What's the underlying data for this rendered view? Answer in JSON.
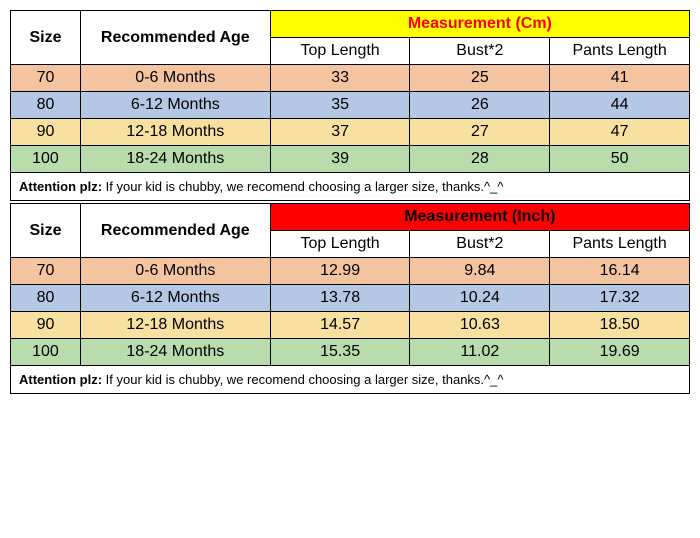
{
  "tables": [
    {
      "measurement_header": "Measurement (Cm)",
      "measurement_bg": "#ffff00",
      "measurement_color": "#ff0000",
      "columns": {
        "size": "Size",
        "age": "Recommended Age",
        "m1": "Top Length",
        "m2": "Bust*2",
        "m3": "Pants Length"
      },
      "rows": [
        {
          "size": "70",
          "age": "0-6 Months",
          "m1": "33",
          "m2": "25",
          "m3": "41",
          "bg": "#f4c4a0"
        },
        {
          "size": "80",
          "age": "6-12 Months",
          "m1": "35",
          "m2": "26",
          "m3": "44",
          "bg": "#b4c8e4"
        },
        {
          "size": "90",
          "age": "12-18 Months",
          "m1": "37",
          "m2": "27",
          "m3": "47",
          "bg": "#f8e0a0"
        },
        {
          "size": "100",
          "age": "18-24 Months",
          "m1": "39",
          "m2": "28",
          "m3": "50",
          "bg": "#b8dcac"
        }
      ],
      "note_bold": "Attention plz:",
      "note_text": " If your kid is chubby, we recomend choosing a larger size, thanks.^_^"
    },
    {
      "measurement_header": "Measurement (Inch)",
      "measurement_bg": "#ff0000",
      "measurement_color": "#000000",
      "columns": {
        "size": "Size",
        "age": "Recommended Age",
        "m1": "Top Length",
        "m2": "Bust*2",
        "m3": "Pants Length"
      },
      "rows": [
        {
          "size": "70",
          "age": "0-6 Months",
          "m1": "12.99",
          "m2": "9.84",
          "m3": "16.14",
          "bg": "#f4c4a0"
        },
        {
          "size": "80",
          "age": "6-12 Months",
          "m1": "13.78",
          "m2": "10.24",
          "m3": "17.32",
          "bg": "#b4c8e4"
        },
        {
          "size": "90",
          "age": "12-18 Months",
          "m1": "14.57",
          "m2": "10.63",
          "m3": "18.50",
          "bg": "#f8e0a0"
        },
        {
          "size": "100",
          "age": "18-24 Months",
          "m1": "15.35",
          "m2": "11.02",
          "m3": "19.69",
          "bg": "#b8dcac"
        }
      ],
      "note_bold": "Attention plz:",
      "note_text": " If your kid is chubby, we recomend choosing a larger size, thanks.^_^"
    }
  ]
}
